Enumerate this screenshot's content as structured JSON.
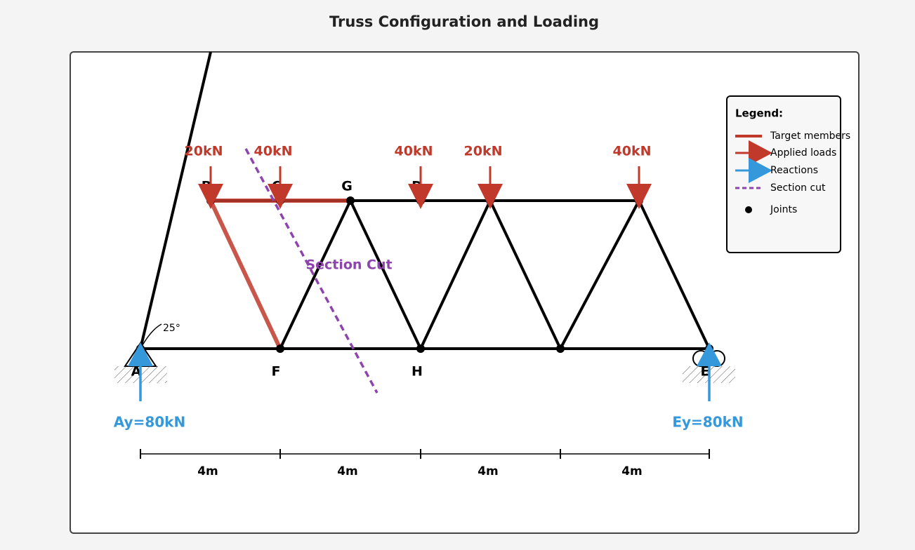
{
  "title": "Truss Configuration and Loading",
  "loads": [
    "20kN",
    "40kN",
    "40kN",
    "20kN",
    "40kN"
  ],
  "nodes": [
    "A",
    "B",
    "C",
    "G",
    "D",
    "F",
    "H",
    "E"
  ],
  "angle_label": "25°",
  "section_label": "Section Cut",
  "reactions": [
    "Ay=80kN",
    "Ey=80kN"
  ],
  "dimensions": [
    "4m",
    "4m",
    "4m",
    "4m"
  ],
  "legend": {
    "title": "Legend:",
    "items": [
      "Target members",
      "Applied loads",
      "Reactions",
      "Section cut",
      "Joints"
    ]
  }
}
